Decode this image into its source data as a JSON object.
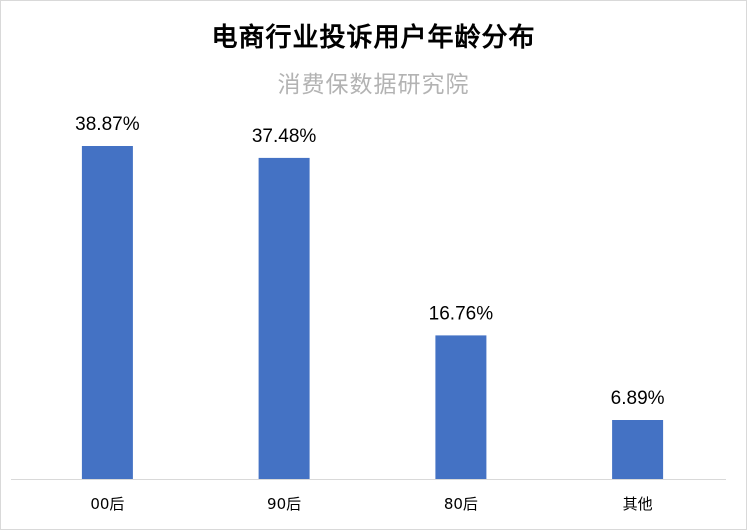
{
  "chart_data": {
    "type": "bar",
    "title": "电商行业投诉用户年龄分布",
    "subtitle": "消费保数据研究院",
    "categories": [
      "00后",
      "90后",
      "80后",
      "其他"
    ],
    "values": [
      38.87,
      37.48,
      16.76,
      6.89
    ],
    "data_labels": [
      "38.87%",
      "37.48%",
      "16.76%",
      "6.89%"
    ],
    "unit": "%",
    "ylim": [
      0,
      38.87
    ],
    "grid": false,
    "legend": "none",
    "bar_color": "#4472C4",
    "axis_color": "#d9d9d9"
  }
}
